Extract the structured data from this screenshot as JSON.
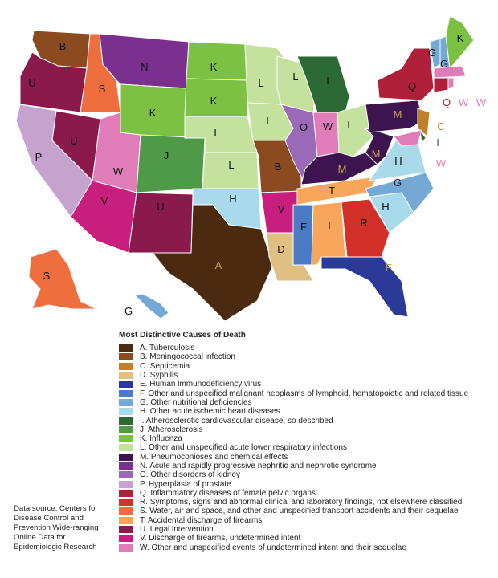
{
  "legend": {
    "title": "Most Distinctive Causes of Death",
    "items": [
      {
        "code": "A",
        "label": "A. Tuberculosis",
        "color": "#4B2A0F"
      },
      {
        "code": "B",
        "label": "B. Meningococcal infection",
        "color": "#8B4A1F"
      },
      {
        "code": "C",
        "label": "C. Septicemia",
        "color": "#C0802B"
      },
      {
        "code": "D",
        "label": "D. Syphilis",
        "color": "#E0C082"
      },
      {
        "code": "E",
        "label": "E. Human immunodeficiency virus",
        "color": "#2B3A96"
      },
      {
        "code": "F",
        "label": "F. Other and unspecified malignant neoplasms of lymphoid, hematopoietic and related tissue",
        "color": "#4B7BC4"
      },
      {
        "code": "G",
        "label": "G. Other nutritional deficiencies",
        "color": "#74A9D6"
      },
      {
        "code": "H",
        "label": "H. Other acute ischemic heart diseases",
        "color": "#A9DAEC"
      },
      {
        "code": "I",
        "label": "I. Atherosclerotic cardiovascular disease, so described",
        "color": "#2B6A35"
      },
      {
        "code": "J",
        "label": "J. Atherosclerosis",
        "color": "#4E9A48"
      },
      {
        "code": "K",
        "label": "K. Influenza",
        "color": "#7DC142"
      },
      {
        "code": "L",
        "label": "L. Other and unspecified acute lower respiratory infections",
        "color": "#C4E29E"
      },
      {
        "code": "M",
        "label": "M. Pneumoconioses and chemical effects",
        "color": "#3D1450"
      },
      {
        "code": "N",
        "label": "N. Acute and rapidly progressive nephritic and nephrotic syndrome",
        "color": "#7B2F8E"
      },
      {
        "code": "O",
        "label": "O. Other disorders of kidney",
        "color": "#9A6AB8"
      },
      {
        "code": "P",
        "label": "P. Hyperplasia of prostate",
        "color": "#C6A3CF"
      },
      {
        "code": "Q",
        "label": "Q. Inflammatory diseases of female pelvic organs",
        "color": "#B0203A"
      },
      {
        "code": "R",
        "label": "R. Symptoms, signs and abnormal clinical and laboratory findings, not elsewhere classified",
        "color": "#D3302A"
      },
      {
        "code": "S",
        "label": "S. Water, air and space, and other and unspecified transport accidents and their sequelae",
        "color": "#EF6E3E"
      },
      {
        "code": "T",
        "label": "T. Accidental discharge of firearms",
        "color": "#F8A65B"
      },
      {
        "code": "U",
        "label": "U. Legal intervention",
        "color": "#8A1A4B"
      },
      {
        "code": "V",
        "label": "V. Discharge of firearms, undetermined intent",
        "color": "#C81E7D"
      },
      {
        "code": "W",
        "label": "W. Other and unspecified events of undetermined intent and their sequelae",
        "color": "#E07DB8"
      }
    ]
  },
  "source": "Data source: Centers for Disease Control and Prevention Wide-ranging Online Data for Epidemiologic Research",
  "states": [
    {
      "state": "WA",
      "code": "B"
    },
    {
      "state": "OR",
      "code": "U"
    },
    {
      "state": "CA",
      "code": "P"
    },
    {
      "state": "ID",
      "code": "S"
    },
    {
      "state": "NV",
      "code": "U"
    },
    {
      "state": "UT",
      "code": "W"
    },
    {
      "state": "MT",
      "code": "N"
    },
    {
      "state": "WY",
      "code": "K"
    },
    {
      "state": "CO",
      "code": "J"
    },
    {
      "state": "AZ",
      "code": "V"
    },
    {
      "state": "NM",
      "code": "U"
    },
    {
      "state": "ND",
      "code": "K"
    },
    {
      "state": "SD",
      "code": "K"
    },
    {
      "state": "NE",
      "code": "L"
    },
    {
      "state": "KS",
      "code": "L"
    },
    {
      "state": "OK",
      "code": "H"
    },
    {
      "state": "TX",
      "code": "A"
    },
    {
      "state": "MN",
      "code": "L"
    },
    {
      "state": "IA",
      "code": "L"
    },
    {
      "state": "MO",
      "code": "B"
    },
    {
      "state": "AR",
      "code": "V"
    },
    {
      "state": "LA",
      "code": "D"
    },
    {
      "state": "WI",
      "code": "L"
    },
    {
      "state": "IL",
      "code": "O"
    },
    {
      "state": "MI",
      "code": "I"
    },
    {
      "state": "IN",
      "code": "W"
    },
    {
      "state": "OH",
      "code": "L"
    },
    {
      "state": "KY",
      "code": "M"
    },
    {
      "state": "TN",
      "code": "T"
    },
    {
      "state": "MS",
      "code": "F"
    },
    {
      "state": "AL",
      "code": "T"
    },
    {
      "state": "GA",
      "code": "R"
    },
    {
      "state": "FL",
      "code": "E"
    },
    {
      "state": "SC",
      "code": "H"
    },
    {
      "state": "NC",
      "code": "G"
    },
    {
      "state": "VA",
      "code": "H"
    },
    {
      "state": "WV",
      "code": "M"
    },
    {
      "state": "PA",
      "code": "M"
    },
    {
      "state": "NY",
      "code": "Q"
    },
    {
      "state": "NJ",
      "code": "C"
    },
    {
      "state": "DE",
      "code": "I"
    },
    {
      "state": "MD",
      "code": "W"
    },
    {
      "state": "VT",
      "code": "G"
    },
    {
      "state": "NH",
      "code": "G"
    },
    {
      "state": "ME",
      "code": "K"
    },
    {
      "state": "MA",
      "code": "W"
    },
    {
      "state": "CT",
      "code": "Q"
    },
    {
      "state": "RI",
      "code": "W"
    },
    {
      "state": "AK",
      "code": "S"
    },
    {
      "state": "HI",
      "code": "G"
    }
  ]
}
